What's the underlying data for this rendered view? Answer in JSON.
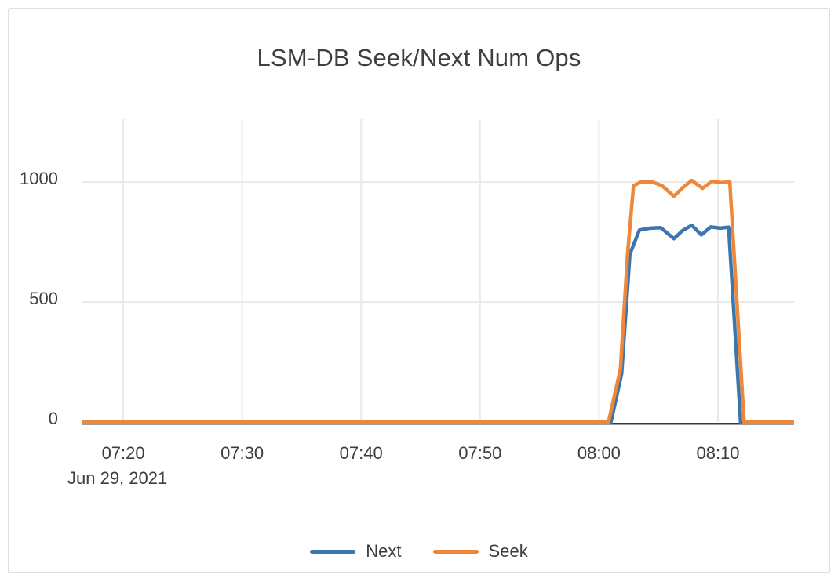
{
  "window": {
    "background": "#ffffff",
    "card_border_color": "#dedede"
  },
  "chart_data": {
    "type": "line",
    "title": "LSM-DB Seek/Next Num Ops",
    "legend_position": "bottom",
    "grid": true,
    "colors": {
      "grid_line": "#e9e9e9",
      "zero_axis_line": "#3b3b3b",
      "text": "#3d3d3d"
    },
    "x_axis": {
      "kind": "time",
      "date_label": "Jun 29, 2021",
      "t_unit": "minutes after 07:00 on Jun 29, 2021",
      "min": 16.5,
      "max": 76.4,
      "ticks": [
        {
          "t": 20,
          "label": "07:20"
        },
        {
          "t": 30,
          "label": "07:30"
        },
        {
          "t": 40,
          "label": "07:40"
        },
        {
          "t": 50,
          "label": "07:50"
        },
        {
          "t": 60,
          "label": "08:00"
        },
        {
          "t": 70,
          "label": "08:10"
        }
      ]
    },
    "y_axis": {
      "min": 0,
      "display_max": 1262,
      "ticks": [
        {
          "v": 0,
          "label": "0"
        },
        {
          "v": 500,
          "label": "500"
        },
        {
          "v": 1000,
          "label": "1000"
        }
      ]
    },
    "series": [
      {
        "name": "Next",
        "color": "#3d76ae",
        "points": [
          [
            16.5,
            0
          ],
          [
            58.0,
            0
          ],
          [
            61.0,
            0
          ],
          [
            61.9,
            200
          ],
          [
            62.6,
            700
          ],
          [
            63.4,
            800
          ],
          [
            64.3,
            808
          ],
          [
            65.2,
            810
          ],
          [
            66.3,
            764
          ],
          [
            67.0,
            797
          ],
          [
            67.8,
            820
          ],
          [
            68.6,
            780
          ],
          [
            69.4,
            813
          ],
          [
            70.2,
            808
          ],
          [
            70.9,
            812
          ],
          [
            71.9,
            0
          ],
          [
            76.4,
            0
          ]
        ]
      },
      {
        "name": "Seek",
        "color": "#ee8738",
        "points": [
          [
            16.5,
            0
          ],
          [
            58.0,
            0
          ],
          [
            60.8,
            0
          ],
          [
            61.8,
            220
          ],
          [
            62.4,
            700
          ],
          [
            62.9,
            985
          ],
          [
            63.5,
            1000
          ],
          [
            64.5,
            1000
          ],
          [
            65.3,
            985
          ],
          [
            66.3,
            941
          ],
          [
            67.0,
            975
          ],
          [
            67.8,
            1007
          ],
          [
            68.7,
            974
          ],
          [
            69.5,
            1003
          ],
          [
            70.2,
            998
          ],
          [
            71.0,
            1000
          ],
          [
            72.2,
            0
          ],
          [
            76.4,
            0
          ]
        ]
      }
    ]
  }
}
